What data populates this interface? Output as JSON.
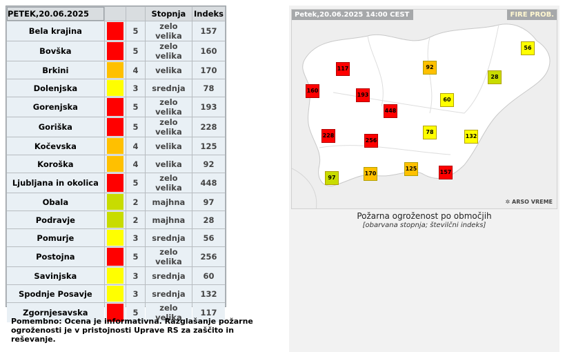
{
  "table": {
    "date_label": "PETEK,20.06.2025",
    "header_stopnja": "Stopnja",
    "header_indeks": "Indeks",
    "rows": [
      {
        "region": "Bela krajina",
        "color": "#ff0000",
        "level": "5",
        "stopnja": "zelo velika",
        "index": "157"
      },
      {
        "region": "Bovška",
        "color": "#ff0000",
        "level": "5",
        "stopnja": "zelo velika",
        "index": "160"
      },
      {
        "region": "Brkini",
        "color": "#ffc000",
        "level": "4",
        "stopnja": "velika",
        "index": "170"
      },
      {
        "region": "Dolenjska",
        "color": "#ffff00",
        "level": "3",
        "stopnja": "srednja",
        "index": "78"
      },
      {
        "region": "Gorenjska",
        "color": "#ff0000",
        "level": "5",
        "stopnja": "zelo velika",
        "index": "193"
      },
      {
        "region": "Goriška",
        "color": "#ff0000",
        "level": "5",
        "stopnja": "zelo velika",
        "index": "228"
      },
      {
        "region": "Kočevska",
        "color": "#ffc000",
        "level": "4",
        "stopnja": "velika",
        "index": "125"
      },
      {
        "region": "Koroška",
        "color": "#ffc000",
        "level": "4",
        "stopnja": "velika",
        "index": "92"
      },
      {
        "region": "Ljubljana in okolica",
        "color": "#ff0000",
        "level": "5",
        "stopnja": "zelo velika",
        "index": "448"
      },
      {
        "region": "Obala",
        "color": "#c8dc00",
        "level": "2",
        "stopnja": "majhna",
        "index": "97"
      },
      {
        "region": "Podravje",
        "color": "#c8dc00",
        "level": "2",
        "stopnja": "majhna",
        "index": "28"
      },
      {
        "region": "Pomurje",
        "color": "#ffff00",
        "level": "3",
        "stopnja": "srednja",
        "index": "56"
      },
      {
        "region": "Postojna",
        "color": "#ff0000",
        "level": "5",
        "stopnja": "zelo velika",
        "index": "256"
      },
      {
        "region": "Savinjska",
        "color": "#ffff00",
        "level": "3",
        "stopnja": "srednja",
        "index": "60"
      },
      {
        "region": "Spodnje Posavje",
        "color": "#ffff00",
        "level": "3",
        "stopnja": "srednja",
        "index": "132"
      },
      {
        "region": "Zgornjesavska",
        "color": "#ff0000",
        "level": "5",
        "stopnja": "zelo velika",
        "index": "117"
      }
    ]
  },
  "note": "Pomembno: Ocena je informativna. Razglašanje požarne ogroženosti je v pristojnosti Uprave RS za zaščito in reševanje.",
  "map": {
    "date_label": "Petek,20.06.2025 14:00 CEST",
    "title": "FIRE PROB.",
    "logo": "ARSO VREME",
    "caption": "Požarna ogroženost po območjih",
    "subcaption": "[obarvana stopnja; številčni indeks]",
    "markers": [
      {
        "value": "56",
        "color": "#ffff00"
      },
      {
        "value": "117",
        "color": "#ff0000"
      },
      {
        "value": "92",
        "color": "#ffc000"
      },
      {
        "value": "28",
        "color": "#c8dc00"
      },
      {
        "value": "160",
        "color": "#ff0000"
      },
      {
        "value": "193",
        "color": "#ff0000"
      },
      {
        "value": "60",
        "color": "#ffff00"
      },
      {
        "value": "448",
        "color": "#ff0000"
      },
      {
        "value": "228",
        "color": "#ff0000"
      },
      {
        "value": "78",
        "color": "#ffff00"
      },
      {
        "value": "256",
        "color": "#ff0000"
      },
      {
        "value": "132",
        "color": "#ffff00"
      },
      {
        "value": "125",
        "color": "#ffc000"
      },
      {
        "value": "97",
        "color": "#c8dc00"
      },
      {
        "value": "170",
        "color": "#ffc000"
      },
      {
        "value": "157",
        "color": "#ff0000"
      }
    ]
  }
}
